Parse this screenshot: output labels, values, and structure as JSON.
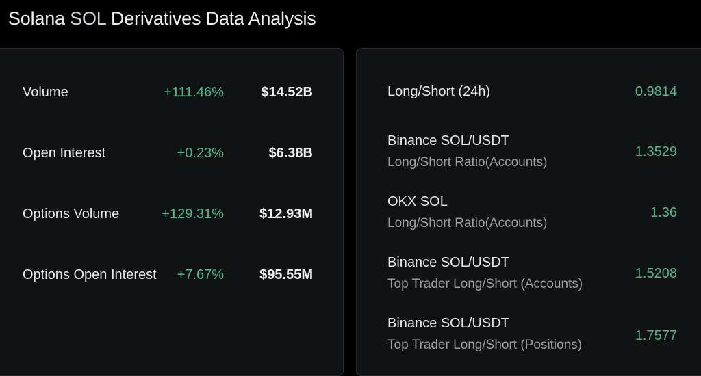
{
  "title_main": "Solana ",
  "title_accent": "SOL",
  "title_rest": " Derivatives Data Analysis",
  "left_rows": [
    {
      "label": "Volume",
      "change": "+111.46%",
      "value": "$14.52B"
    },
    {
      "label": "Open Interest",
      "change": "+0.23%",
      "value": "$6.38B"
    },
    {
      "label": "Options Volume",
      "change": "+129.31%",
      "value": "$12.93M"
    },
    {
      "label": "Options Open Interest",
      "change": "+7.67%",
      "value": "$95.55M"
    }
  ],
  "right_rows": [
    {
      "label": "Long/Short (24h)",
      "sublabel": "",
      "value": "0.9814"
    },
    {
      "label": "Binance SOL/USDT",
      "sublabel": "Long/Short Ratio(Accounts)",
      "value": "1.3529"
    },
    {
      "label": "OKX SOL",
      "sublabel": "Long/Short Ratio(Accounts)",
      "value": "1.36"
    },
    {
      "label": "Binance SOL/USDT",
      "sublabel": "Top Trader Long/Short (Accounts)",
      "value": "1.5208"
    },
    {
      "label": "Binance SOL/USDT",
      "sublabel": "Top Trader Long/Short (Positions)",
      "value": "1.7577"
    }
  ],
  "colors": {
    "background": "#000000",
    "panel": "#111214",
    "positive": "#4fb98b",
    "text": "#e6e8eb",
    "muted": "#9b9fa8"
  }
}
